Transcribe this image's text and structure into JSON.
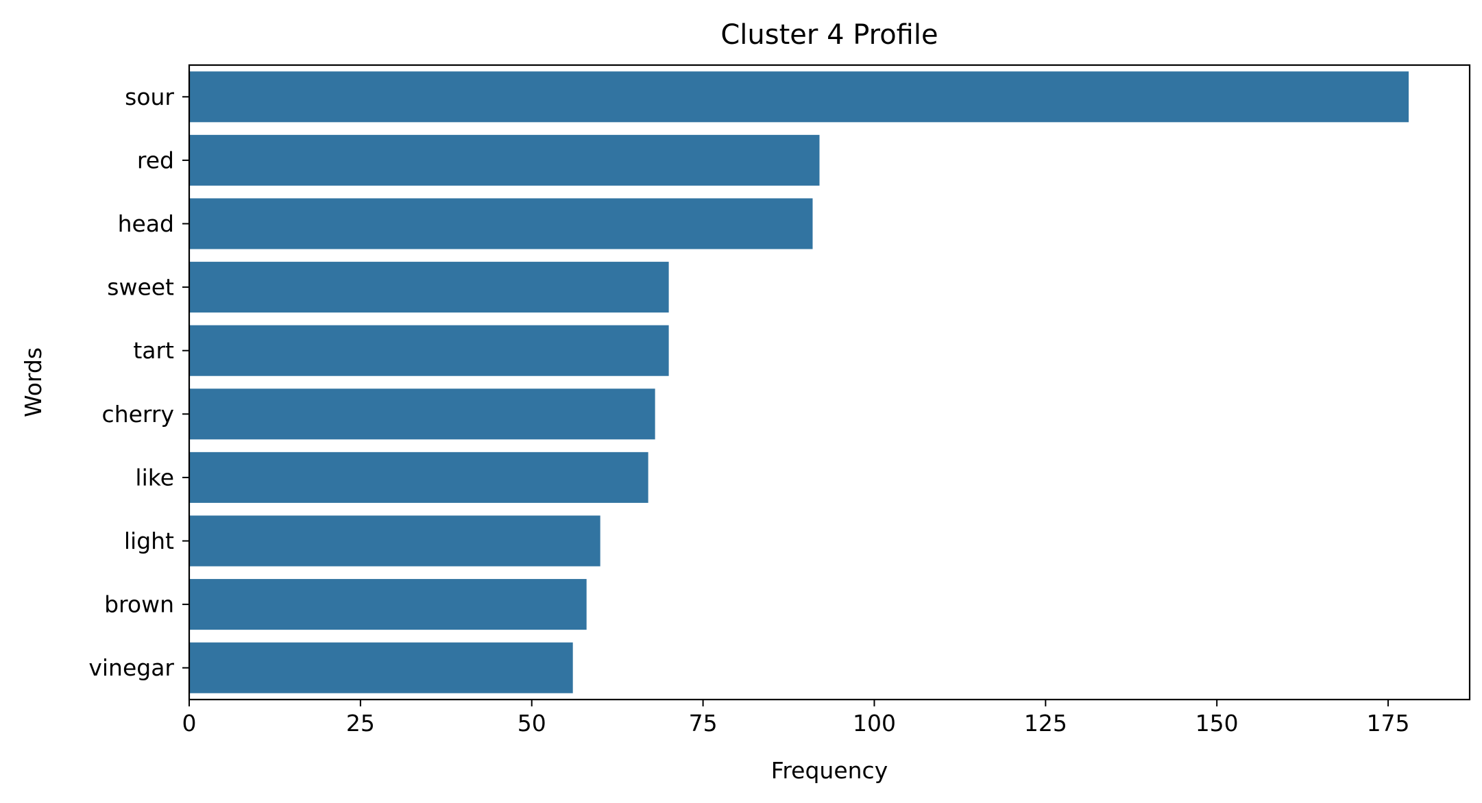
{
  "chart_data": {
    "type": "bar",
    "orientation": "horizontal",
    "title": "Cluster 4 Profile",
    "xlabel": "Frequency",
    "ylabel": "Words",
    "categories": [
      "sour",
      "red",
      "head",
      "sweet",
      "tart",
      "cherry",
      "like",
      "light",
      "brown",
      "vinegar"
    ],
    "values": [
      178,
      92,
      91,
      70,
      70,
      68,
      67,
      60,
      58,
      56
    ],
    "xlim": [
      0,
      186.9
    ],
    "xticks": [
      "0",
      "25",
      "50",
      "75",
      "100",
      "125",
      "150",
      "175"
    ],
    "bar_color": "#3274a1",
    "grid": false,
    "legend": "none"
  }
}
